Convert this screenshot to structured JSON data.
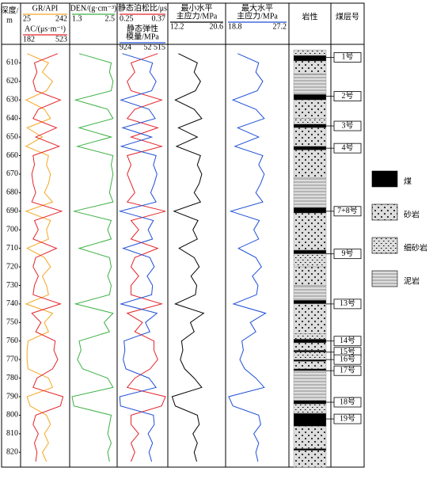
{
  "chart_data": {
    "type": "well-log",
    "depth_label": [
      "深度/",
      "m"
    ],
    "depth": [
      605,
      610,
      615,
      620,
      625,
      630,
      635,
      640,
      645,
      650,
      655,
      660,
      665,
      670,
      675,
      680,
      685,
      690,
      695,
      700,
      705,
      710,
      715,
      720,
      725,
      730,
      735,
      740,
      745,
      750,
      755,
      760,
      765,
      770,
      775,
      780,
      785,
      790,
      795,
      800,
      805,
      810,
      815,
      820,
      825
    ],
    "ylim": [
      600,
      828
    ],
    "yticks": [
      610,
      620,
      630,
      640,
      650,
      660,
      670,
      680,
      690,
      700,
      710,
      720,
      730,
      740,
      750,
      760,
      770,
      780,
      790,
      800,
      810,
      820
    ],
    "tracks": [
      {
        "curves": [
          {
            "name": [
              "GR/API"
            ],
            "color": "#f5a623",
            "xlim": [
              25,
              242
            ],
            "values": [
              45,
              150,
              120,
              170,
              140,
              40,
              130,
              160,
              45,
              120,
              40,
              150,
              140,
              160,
              150,
              130,
              170,
              40,
              160,
              140,
              150,
              45,
              130,
              160,
              120,
              140,
              150,
              40,
              170,
              130,
              150,
              50,
              45,
              45,
              50,
              150,
              170,
              45,
              60,
              140,
              160,
              130,
              150,
              120,
              140
            ]
          },
          {
            "name": [
              "AC/(μs·m⁻¹)"
            ],
            "color": "#e3242b",
            "xlim": [
              182,
              523
            ],
            "values": [
              450,
              270,
              290,
              260,
              280,
              470,
              300,
              260,
              440,
              280,
              460,
              260,
              270,
              250,
              260,
              280,
              250,
              480,
              270,
              300,
              260,
              440,
              280,
              260,
              300,
              270,
              260,
              470,
              250,
              320,
              280,
              430,
              420,
              450,
              410,
              290,
              260,
              490,
              470,
              280,
              260,
              300,
              270,
              290,
              280
            ]
          }
        ]
      },
      {
        "curves": [
          {
            "name": [
              "DEN/(g·cm⁻³)"
            ],
            "color": "#3cb043",
            "xlim": [
              1.3,
              2.5
            ],
            "values": [
              1.5,
              2.4,
              2.35,
              2.45,
              2.4,
              1.4,
              2.3,
              2.45,
              1.5,
              2.4,
              1.45,
              2.45,
              2.4,
              2.45,
              2.4,
              2.35,
              2.45,
              1.35,
              2.4,
              2.3,
              2.4,
              1.5,
              2.35,
              2.4,
              2.3,
              2.4,
              2.35,
              1.4,
              2.45,
              2.2,
              2.35,
              1.5,
              1.55,
              1.45,
              1.6,
              2.3,
              2.45,
              1.3,
              1.35,
              2.4,
              2.35,
              2.3,
              2.4,
              2.3,
              2.35
            ]
          }
        ]
      },
      {
        "curves": [
          {
            "name": [
              "静态泊松比/μs"
            ],
            "color": "#e3242b",
            "xlim": [
              0.25,
              0.37
            ],
            "values": [
              0.35,
              0.28,
              0.29,
              0.27,
              0.28,
              0.36,
              0.29,
              0.27,
              0.35,
              0.28,
              0.36,
              0.27,
              0.28,
              0.27,
              0.28,
              0.29,
              0.27,
              0.37,
              0.28,
              0.3,
              0.28,
              0.35,
              0.29,
              0.28,
              0.3,
              0.28,
              0.28,
              0.36,
              0.27,
              0.31,
              0.29,
              0.34,
              0.34,
              0.35,
              0.33,
              0.29,
              0.27,
              0.37,
              0.36,
              0.28,
              0.28,
              0.3,
              0.28,
              0.29,
              0.28
            ]
          },
          {
            "name": [
              "静态弹性",
              "模量/MPa"
            ],
            "color": "#1f4fd6",
            "xlim": [
              924,
              {
                "value": 52515,
                "label": "52 515"
              }
            ],
            "values": [
              4000,
              38000,
              35000,
              42000,
              37000,
              2500,
              34000,
              41000,
              4500,
              37000,
              3000,
              42000,
              39000,
              43000,
              40000,
              36000,
              42000,
              1500,
              39000,
              33000,
              38000,
              5000,
              35000,
              40000,
              32000,
              38000,
              37000,
              2500,
              43000,
              30000,
              35000,
              6000,
              7000,
              5000,
              8000,
              34000,
              42000,
              1200,
              2000,
              39000,
              40000,
              33000,
              38000,
              34000,
              37000
            ]
          }
        ]
      },
      {
        "curves": [
          {
            "name": [
              "最小水平",
              "主应力/MPa"
            ],
            "color": "#000000",
            "xlim": [
              12.2,
              20.6
            ],
            "values": [
              13.5,
              16.5,
              16,
              17,
              16.2,
              13,
              16,
              17.2,
              13.5,
              16.5,
              13.2,
              17,
              16.5,
              17.2,
              16.8,
              16,
              17,
              12.8,
              16.6,
              15.8,
              16.5,
              13.6,
              16,
              16.8,
              15.5,
              16.4,
              16.2,
              13,
              17.5,
              15.4,
              16,
              14,
              14.2,
              13.8,
              14.5,
              16,
              17.2,
              12.5,
              13,
              16.5,
              16.8,
              15.8,
              16.5,
              16,
              16.4
            ]
          }
        ]
      },
      {
        "curves": [
          {
            "name": [
              "最大水平",
              "主应力/MPa"
            ],
            "color": "#1f4fd6",
            "xlim": [
              18.8,
              27.2
            ],
            "values": [
              20.2,
              23.2,
              22.8,
              23.8,
              23,
              19.5,
              22.8,
              24,
              20.2,
              23.2,
              19.8,
              23.8,
              23.2,
              24,
              23.5,
              22.8,
              23.8,
              19.2,
              23.3,
              22.5,
              23.2,
              20.3,
              22.8,
              23.6,
              22.3,
              23.1,
              22.9,
              19.6,
              24.2,
              22,
              22.8,
              20.8,
              21,
              20.5,
              21.2,
              22.8,
              24,
              18.9,
              19.5,
              23.2,
              23.5,
              22.5,
              23.2,
              22.8,
              23.1
            ]
          }
        ]
      }
    ],
    "lithology": {
      "title": "岩性",
      "legend": [
        "煤",
        "砂岩",
        "细砂岩",
        "泥岩"
      ],
      "layers": [
        {
          "top": 603,
          "bottom": 606,
          "rock": 2
        },
        {
          "top": 606,
          "bottom": 609,
          "rock": 0
        },
        {
          "top": 609,
          "bottom": 616,
          "rock": 1
        },
        {
          "top": 616,
          "bottom": 627,
          "rock": 3
        },
        {
          "top": 627,
          "bottom": 630,
          "rock": 0
        },
        {
          "top": 630,
          "bottom": 640,
          "rock": 1
        },
        {
          "top": 640,
          "bottom": 643,
          "rock": 2
        },
        {
          "top": 643,
          "bottom": 645,
          "rock": 0
        },
        {
          "top": 645,
          "bottom": 655,
          "rock": 1
        },
        {
          "top": 655,
          "bottom": 657,
          "rock": 0
        },
        {
          "top": 657,
          "bottom": 672,
          "rock": 1
        },
        {
          "top": 672,
          "bottom": 688,
          "rock": 3
        },
        {
          "top": 688,
          "bottom": 691,
          "rock": 0
        },
        {
          "top": 691,
          "bottom": 711,
          "rock": 1
        },
        {
          "top": 711,
          "bottom": 713,
          "rock": 0
        },
        {
          "top": 713,
          "bottom": 720,
          "rock": 2
        },
        {
          "top": 720,
          "bottom": 730,
          "rock": 1
        },
        {
          "top": 730,
          "bottom": 738,
          "rock": 3
        },
        {
          "top": 738,
          "bottom": 740,
          "rock": 0
        },
        {
          "top": 740,
          "bottom": 756,
          "rock": 1
        },
        {
          "top": 756,
          "bottom": 759,
          "rock": 2
        },
        {
          "top": 759,
          "bottom": 761,
          "rock": 0
        },
        {
          "top": 761,
          "bottom": 765,
          "rock": 1
        },
        {
          "top": 765,
          "bottom": 766,
          "rock": 0
        },
        {
          "top": 766,
          "bottom": 770,
          "rock": 2
        },
        {
          "top": 770,
          "bottom": 771,
          "rock": 0
        },
        {
          "top": 771,
          "bottom": 775,
          "rock": 1
        },
        {
          "top": 775,
          "bottom": 776,
          "rock": 0
        },
        {
          "top": 776,
          "bottom": 792,
          "rock": 3
        },
        {
          "top": 792,
          "bottom": 794,
          "rock": 0
        },
        {
          "top": 794,
          "bottom": 799,
          "rock": 2
        },
        {
          "top": 799,
          "bottom": 806,
          "rock": 0
        },
        {
          "top": 806,
          "bottom": 818,
          "rock": 1
        },
        {
          "top": 818,
          "bottom": 819,
          "rock": 0
        },
        {
          "top": 819,
          "bottom": 828,
          "rock": 1
        }
      ]
    },
    "seams": {
      "title": "煤层号",
      "items": [
        {
          "label": "1号",
          "depth": 607
        },
        {
          "label": "2号",
          "depth": 628
        },
        {
          "label": "3号",
          "depth": 644
        },
        {
          "label": "4号",
          "depth": 656
        },
        {
          "label": "7+8号",
          "depth": 690
        },
        {
          "label": "9号",
          "depth": 713
        },
        {
          "label": "13号",
          "depth": 740
        },
        {
          "label": "14号",
          "depth": 760
        },
        {
          "label": "15号",
          "depth": 766
        },
        {
          "label": "16号",
          "depth": 770
        },
        {
          "label": "17号",
          "depth": 776
        },
        {
          "label": "18号",
          "depth": 793
        },
        {
          "label": "19号",
          "depth": 802
        }
      ]
    }
  }
}
